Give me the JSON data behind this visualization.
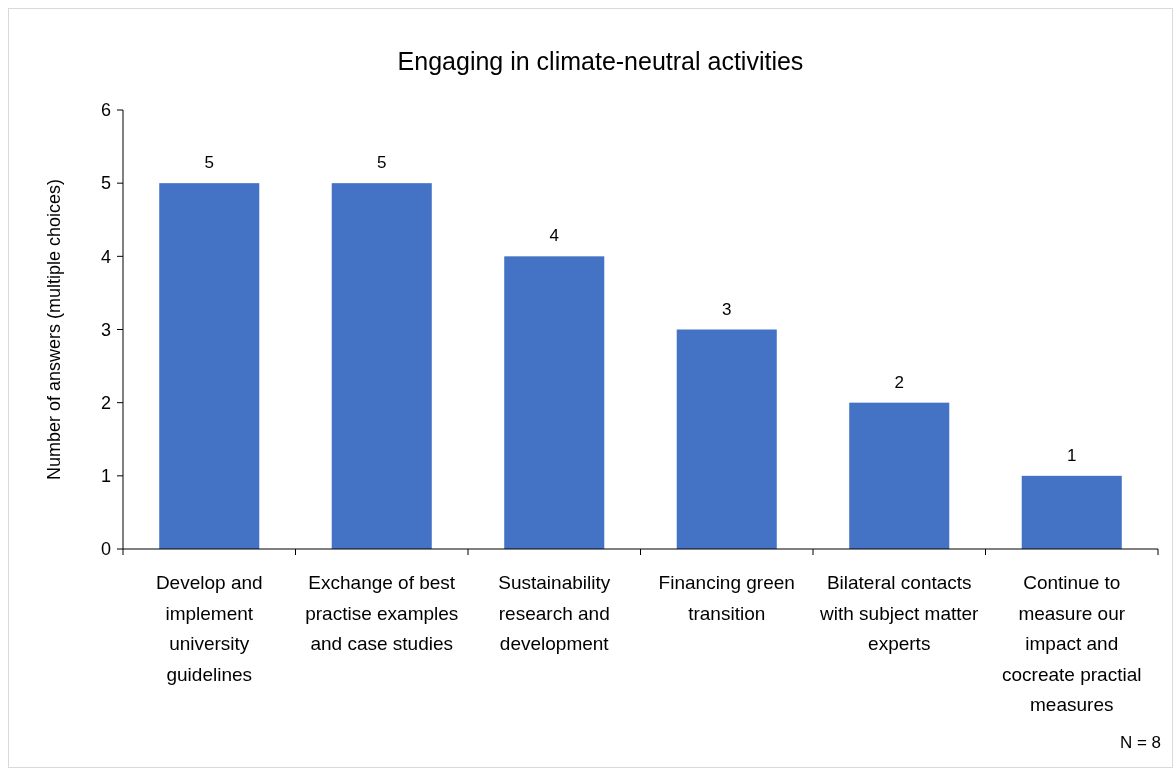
{
  "chart_data": {
    "type": "bar",
    "title": "Engaging in climate-neutral activities",
    "ylabel": "Number of answers (multiple choices)",
    "categories": [
      "Develop and implement university guidelines",
      "Exchange of best practise examples and case studies",
      "Sustainability research and development",
      "Financing green transition",
      "Bilateral contacts with subject matter experts",
      "Continue to measure our impact and cocreate practial measures"
    ],
    "values": [
      5,
      5,
      4,
      3,
      2,
      1
    ],
    "color": "#4472c4",
    "ylim": [
      0,
      6
    ],
    "yticks": [
      0,
      1,
      2,
      3,
      4,
      5,
      6
    ],
    "grid": false,
    "data_labels": true,
    "annotations": [
      "N = 8"
    ]
  }
}
